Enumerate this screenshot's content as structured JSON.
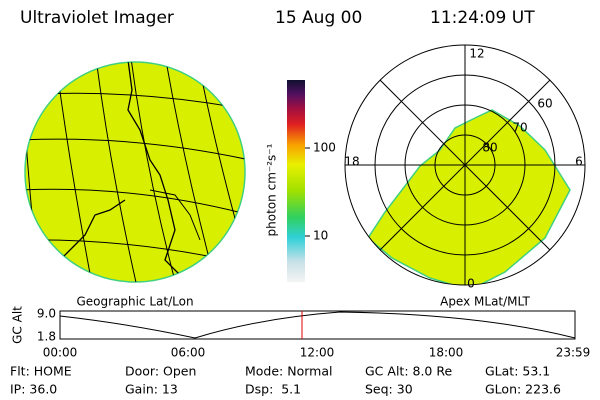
{
  "header": {
    "title": "Ultraviolet Imager",
    "date": "15 Aug 00",
    "time": "11:24:09 UT"
  },
  "geo_panel": {
    "label": "Geographic Lat/Lon"
  },
  "colorbar": {
    "label": "photon cm⁻²s⁻¹",
    "ticks": [
      "100",
      "10"
    ]
  },
  "polar_panel": {
    "label": "Apex MLat/MLT",
    "mlat_labels": [
      "80",
      "70",
      "60"
    ],
    "mlt_labels": [
      "12",
      "18",
      "6",
      "0"
    ]
  },
  "altitude_panel": {
    "label": "GC Alt",
    "yticks": [
      "9.0",
      "1.8"
    ],
    "xticks": [
      "00:00",
      "06:00",
      "12:00",
      "18:00",
      "23:59"
    ]
  },
  "status": {
    "rows": [
      [
        "Flt: HOME",
        "Door: Open",
        "Mode: Normal",
        "GC Alt: 8.0 Re",
        "GLat: 53.1"
      ],
      [
        "IP: 36.0",
        "Gain: 13",
        "Dsp:  5.1",
        "Seq: 30",
        "GLon: 223.6"
      ]
    ]
  }
}
